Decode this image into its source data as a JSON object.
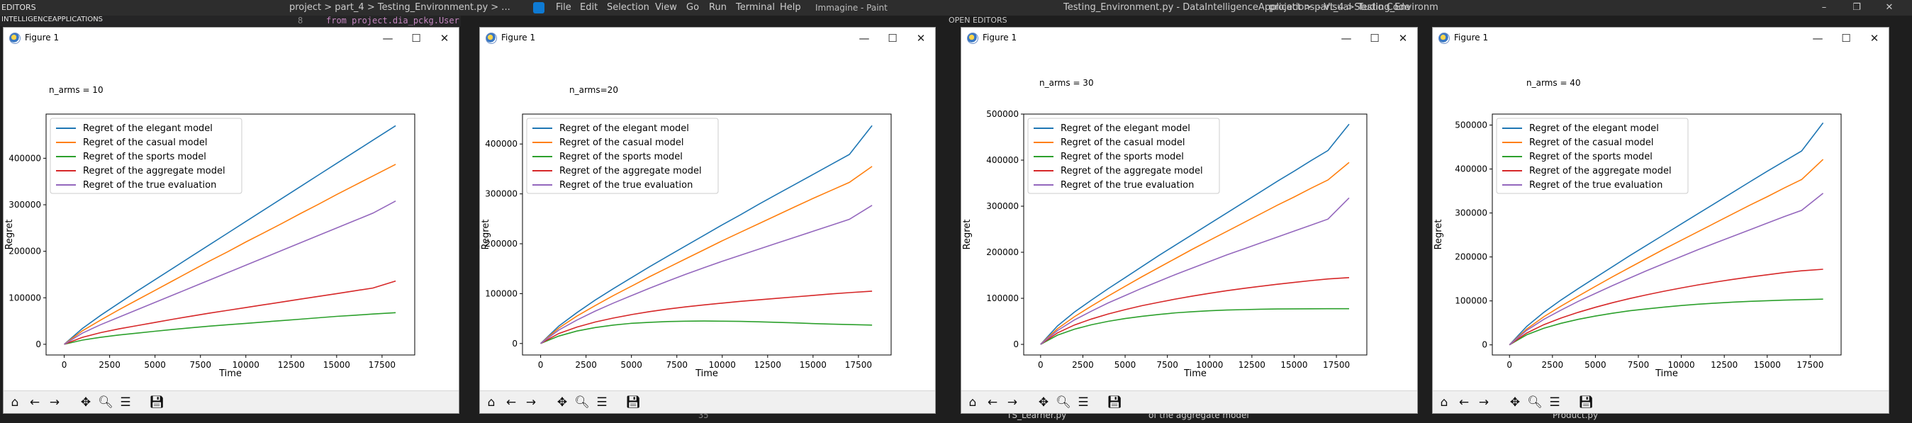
{
  "background": {
    "menu": [
      "File",
      "Edit",
      "Selection",
      "View",
      "Go",
      "Run",
      "Terminal",
      "Help"
    ],
    "window_title": "Testing_Environment.py - DataIntelligenceApplications - Visual Studio Code",
    "explorer_header": "EDITORS",
    "explorer_project": "INTELLIGENCEAPPLICATIONS",
    "breadcrumb_left": "project > part_4 > Testing_Environment.py > ...",
    "breadcrumb_right": "project > part_4 > Testing_Environm",
    "code_line_no": "8",
    "code_line": "from project.dia_pckg.User",
    "paint_title": "Immagine - Paint",
    "open_editors": "OPEN EDITORS",
    "status_text": "of the aggregate model",
    "bottom_file_1": "TS_Learner.py",
    "bottom_file_2": "Product.py",
    "line_number_bottom": "35",
    "window_controls": [
      "–",
      "❐",
      "✕"
    ]
  },
  "windows": [
    {
      "title": "Figure 1",
      "annotation": "n_arms = 10"
    },
    {
      "title": "Figure 1",
      "annotation": "n_arms=20"
    },
    {
      "title": "Figure 1",
      "annotation": "n_arms = 30"
    },
    {
      "title": "Figure 1",
      "annotation": "n_arms = 40"
    }
  ],
  "window_controls": [
    "—",
    "☐",
    "✕"
  ],
  "toolbar_icons": [
    "home-icon",
    "back-icon",
    "forward-icon",
    "pan-icon",
    "zoom-icon",
    "configure-subplots-icon",
    "save-icon"
  ],
  "series_colors": [
    "#1f77b4",
    "#ff7f0e",
    "#2ca02c",
    "#d62728",
    "#9467bd"
  ],
  "chart_data": [
    {
      "type": "line",
      "xlabel": "Time",
      "ylabel": "Regret",
      "xlim": [
        -1000,
        19300
      ],
      "ylim": [
        -23000,
        495000
      ],
      "xticks": [
        0,
        2500,
        5000,
        7500,
        10000,
        12500,
        15000,
        17500
      ],
      "yticks": [
        0,
        100000,
        200000,
        300000,
        400000
      ],
      "x": [
        0,
        1000,
        2000,
        3000,
        4000,
        5000,
        6000,
        7000,
        8000,
        9000,
        10000,
        11000,
        12000,
        13000,
        14000,
        15000,
        16000,
        17000,
        18250
      ],
      "legend_position": "upper left",
      "series": [
        {
          "name": "Regret of the elegant model",
          "values": [
            0,
            34000,
            62000,
            88000,
            114000,
            139000,
            164000,
            189000,
            214000,
            239000,
            264000,
            289000,
            314000,
            339000,
            364000,
            389000,
            414000,
            439000,
            470000
          ]
        },
        {
          "name": "Regret of the casual model",
          "values": [
            0,
            29000,
            52000,
            74000,
            95000,
            116000,
            137000,
            158000,
            179000,
            199000,
            220000,
            240000,
            260000,
            281000,
            301000,
            322000,
            342000,
            362000,
            387000
          ]
        },
        {
          "name": "Regret of the sports model",
          "values": [
            0,
            9000,
            15000,
            20000,
            24000,
            28000,
            32000,
            35500,
            39000,
            42000,
            45000,
            48000,
            51000,
            54000,
            57000,
            60000,
            62500,
            65000,
            68000
          ]
        },
        {
          "name": "Regret of the aggregate model",
          "values": [
            0,
            15000,
            25000,
            33000,
            40000,
            47000,
            54000,
            60500,
            67000,
            73000,
            79000,
            85000,
            91000,
            97000,
            103000,
            109000,
            115000,
            121000,
            136000
          ]
        },
        {
          "name": "Regret of the true evaluation",
          "values": [
            0,
            24000,
            42000,
            58000,
            74000,
            90000,
            106000,
            122000,
            138000,
            154000,
            170000,
            186000,
            202000,
            218000,
            234000,
            250000,
            266000,
            282000,
            308000
          ]
        }
      ]
    },
    {
      "type": "line",
      "xlabel": "Time",
      "ylabel": "Regret",
      "xlim": [
        -1000,
        19300
      ],
      "ylim": [
        -23000,
        460000
      ],
      "xticks": [
        0,
        2500,
        5000,
        7500,
        10000,
        12500,
        15000,
        17500
      ],
      "yticks": [
        0,
        100000,
        200000,
        300000,
        400000
      ],
      "x": [
        0,
        1000,
        2000,
        3000,
        4000,
        5000,
        6000,
        7000,
        8000,
        9000,
        10000,
        11000,
        12000,
        13000,
        14000,
        15000,
        16000,
        17000,
        18250
      ],
      "legend_position": "upper left",
      "series": [
        {
          "name": "Regret of the elegant model",
          "values": [
            0,
            35000,
            62000,
            87000,
            110000,
            132000,
            154000,
            175000,
            196000,
            217000,
            238000,
            258000,
            279000,
            299000,
            319000,
            339000,
            359000,
            379000,
            437000
          ]
        },
        {
          "name": "Regret of the casual model",
          "values": [
            0,
            31000,
            55000,
            76000,
            96000,
            115000,
            134000,
            152000,
            170000,
            188000,
            206000,
            223000,
            240000,
            257000,
            274000,
            291000,
            307000,
            323000,
            355000
          ]
        },
        {
          "name": "Regret of the sports model",
          "values": [
            0,
            15000,
            25000,
            32000,
            37000,
            40500,
            42500,
            44000,
            44800,
            45000,
            44800,
            44300,
            43500,
            42500,
            41300,
            40000,
            39000,
            38000,
            37000
          ]
        },
        {
          "name": "Regret of the aggregate model",
          "values": [
            0,
            20000,
            33000,
            43000,
            51000,
            58000,
            64000,
            69000,
            73500,
            77500,
            81000,
            84500,
            87500,
            90500,
            93500,
            96500,
            99500,
            102000,
            105000
          ]
        },
        {
          "name": "Regret of the true evaluation",
          "values": [
            0,
            27000,
            47000,
            65000,
            81000,
            96000,
            111000,
            125000,
            139000,
            152000,
            165000,
            177000,
            189000,
            201000,
            213000,
            225000,
            237000,
            249000,
            277000
          ]
        }
      ]
    },
    {
      "type": "line",
      "xlabel": "Time",
      "ylabel": "Regret",
      "xlim": [
        -1000,
        19300
      ],
      "ylim": [
        -23000,
        500000
      ],
      "xticks": [
        0,
        2500,
        5000,
        7500,
        10000,
        12500,
        15000,
        17500
      ],
      "yticks": [
        0,
        100000,
        200000,
        300000,
        400000,
        500000
      ],
      "x": [
        0,
        1000,
        2000,
        3000,
        4000,
        5000,
        6000,
        7000,
        8000,
        9000,
        10000,
        11000,
        12000,
        13000,
        14000,
        15000,
        16000,
        17000,
        18250
      ],
      "legend_position": "upper left",
      "series": [
        {
          "name": "Regret of the elegant model",
          "values": [
            0,
            40000,
            70000,
            96000,
            121000,
            145000,
            169000,
            193000,
            216000,
            239000,
            262000,
            285000,
            308000,
            331000,
            354000,
            376000,
            399000,
            421000,
            478000
          ]
        },
        {
          "name": "Regret of the casual model",
          "values": [
            0,
            34000,
            60000,
            83000,
            105000,
            126000,
            147000,
            167000,
            187000,
            207000,
            226000,
            245000,
            264000,
            283000,
            302000,
            320000,
            339000,
            357000,
            395000
          ]
        },
        {
          "name": "Regret of the sports model",
          "values": [
            0,
            20000,
            33000,
            42500,
            50000,
            56000,
            61000,
            65000,
            68500,
            71000,
            73000,
            74500,
            75500,
            76300,
            76800,
            77100,
            77300,
            77400,
            77500
          ]
        },
        {
          "name": "Regret of the aggregate model",
          "values": [
            0,
            25000,
            42000,
            55000,
            66000,
            75500,
            84000,
            91500,
            98500,
            105000,
            111000,
            116500,
            121500,
            126000,
            130500,
            134500,
            138500,
            142000,
            145000
          ]
        },
        {
          "name": "Regret of the true evaluation",
          "values": [
            0,
            30000,
            53000,
            72000,
            90000,
            106000,
            122000,
            137000,
            152000,
            166000,
            180000,
            194000,
            207000,
            220000,
            233000,
            246000,
            259000,
            272000,
            318000
          ]
        }
      ]
    },
    {
      "type": "line",
      "xlabel": "Time",
      "ylabel": "Regret",
      "xlim": [
        -1000,
        19300
      ],
      "ylim": [
        -23000,
        525000
      ],
      "xticks": [
        0,
        2500,
        5000,
        7500,
        10000,
        12500,
        15000,
        17500
      ],
      "yticks": [
        0,
        100000,
        200000,
        300000,
        400000,
        500000
      ],
      "x": [
        0,
        1000,
        2000,
        3000,
        4000,
        5000,
        6000,
        7000,
        8000,
        9000,
        10000,
        11000,
        12000,
        13000,
        14000,
        15000,
        16000,
        17000,
        18250
      ],
      "legend_position": "upper left",
      "series": [
        {
          "name": "Regret of the elegant model",
          "values": [
            0,
            42000,
            74000,
            102000,
            128000,
            153000,
            178000,
            203000,
            227000,
            251000,
            275000,
            299000,
            323000,
            347000,
            371000,
            395000,
            418000,
            441000,
            505000
          ]
        },
        {
          "name": "Regret of the casual model",
          "values": [
            0,
            36000,
            64000,
            88000,
            111000,
            133000,
            155000,
            176000,
            197000,
            218000,
            238000,
            258000,
            278000,
            298000,
            318000,
            337000,
            357000,
            376000,
            422000
          ]
        },
        {
          "name": "Regret of the sports model",
          "values": [
            0,
            23000,
            38000,
            49000,
            58000,
            65500,
            72000,
            77500,
            82000,
            86000,
            89500,
            92500,
            95000,
            97200,
            99000,
            100500,
            101800,
            102800,
            104000
          ]
        },
        {
          "name": "Regret of the aggregate model",
          "values": [
            0,
            27000,
            46000,
            61000,
            74000,
            85500,
            96000,
            105500,
            114000,
            122000,
            129500,
            136500,
            143000,
            149000,
            154500,
            159500,
            164500,
            168500,
            172000
          ]
        },
        {
          "name": "Regret of the true evaluation",
          "values": [
            0,
            33000,
            58000,
            79000,
            99000,
            117000,
            135000,
            152000,
            169000,
            185000,
            201000,
            217000,
            232000,
            247000,
            262000,
            277000,
            292000,
            306000,
            345000
          ]
        }
      ]
    }
  ]
}
